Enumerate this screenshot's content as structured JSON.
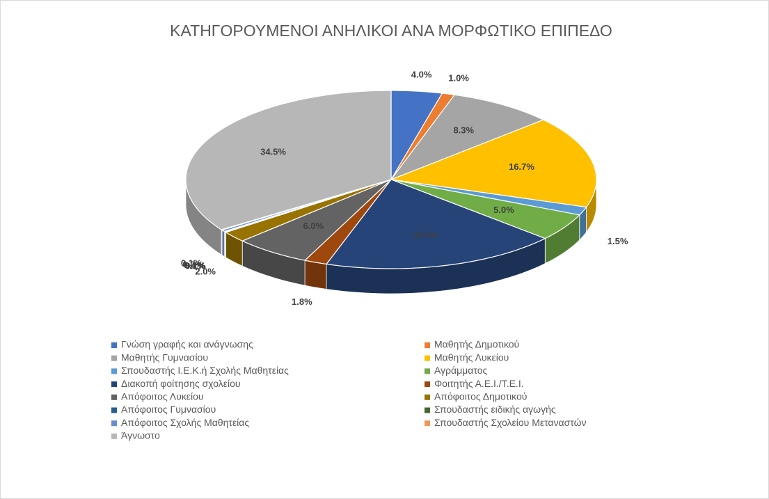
{
  "chart_data": {
    "type": "pie",
    "title": "ΚΑΤΗΓΟΡΟΥΜΕΝΟΙ ΑΝΗΛΙΚΟΙ ΑΝΑ ΜΟΡΦΩΤΙΚΟ ΕΠΙΠΕΔΟ",
    "categories": [
      "Γνώση  γραφής και ανάγνωσης",
      "Μαθητής Δημοτικού",
      "Μαθητής Γυμνασίου",
      "Μαθητής Λυκείου",
      "Σπουδαστής Ι.Ε.Κ.ή Σχολής Μαθητείας",
      "Αγράμματος",
      "Διακοπή φοίτησης σχολείου",
      "Φοιτητής Α.Ε.Ι./Τ.Ε.Ι.",
      "Απόφοιτος Λυκείου",
      "Απόφοιτος Δημοτικού",
      "Απόφοιτος Γυμνασίου",
      "Σπουδαστής ειδικής  αγωγής",
      "Απόφοιτος Σχολής Μαθητείας",
      "Σπουδαστής Σχολείου Μεταναστών",
      "Άγνωστο"
    ],
    "values": [
      4.0,
      1.0,
      8.3,
      16.7,
      1.5,
      5.0,
      18.6,
      1.8,
      6.0,
      2.0,
      0.1,
      0.1,
      0.3,
      0.1,
      34.5
    ],
    "value_labels": [
      "4.0%",
      "1.0%",
      "8.3%",
      "16.7%",
      "1.5%",
      "5.0%",
      "18.6%",
      "1.8%",
      "6.0%",
      "2.0%",
      "0.1%",
      "0.1%",
      "0.3%",
      "0.1%",
      "34.5%"
    ],
    "colors": [
      "#4472c4",
      "#ed7d31",
      "#a5a5a5",
      "#ffc000",
      "#5b9bd5",
      "#70ad47",
      "#264478",
      "#9e480e",
      "#636363",
      "#997300",
      "#255e91",
      "#43682b",
      "#698ed0",
      "#f1975a",
      "#b7b7b7"
    ]
  }
}
